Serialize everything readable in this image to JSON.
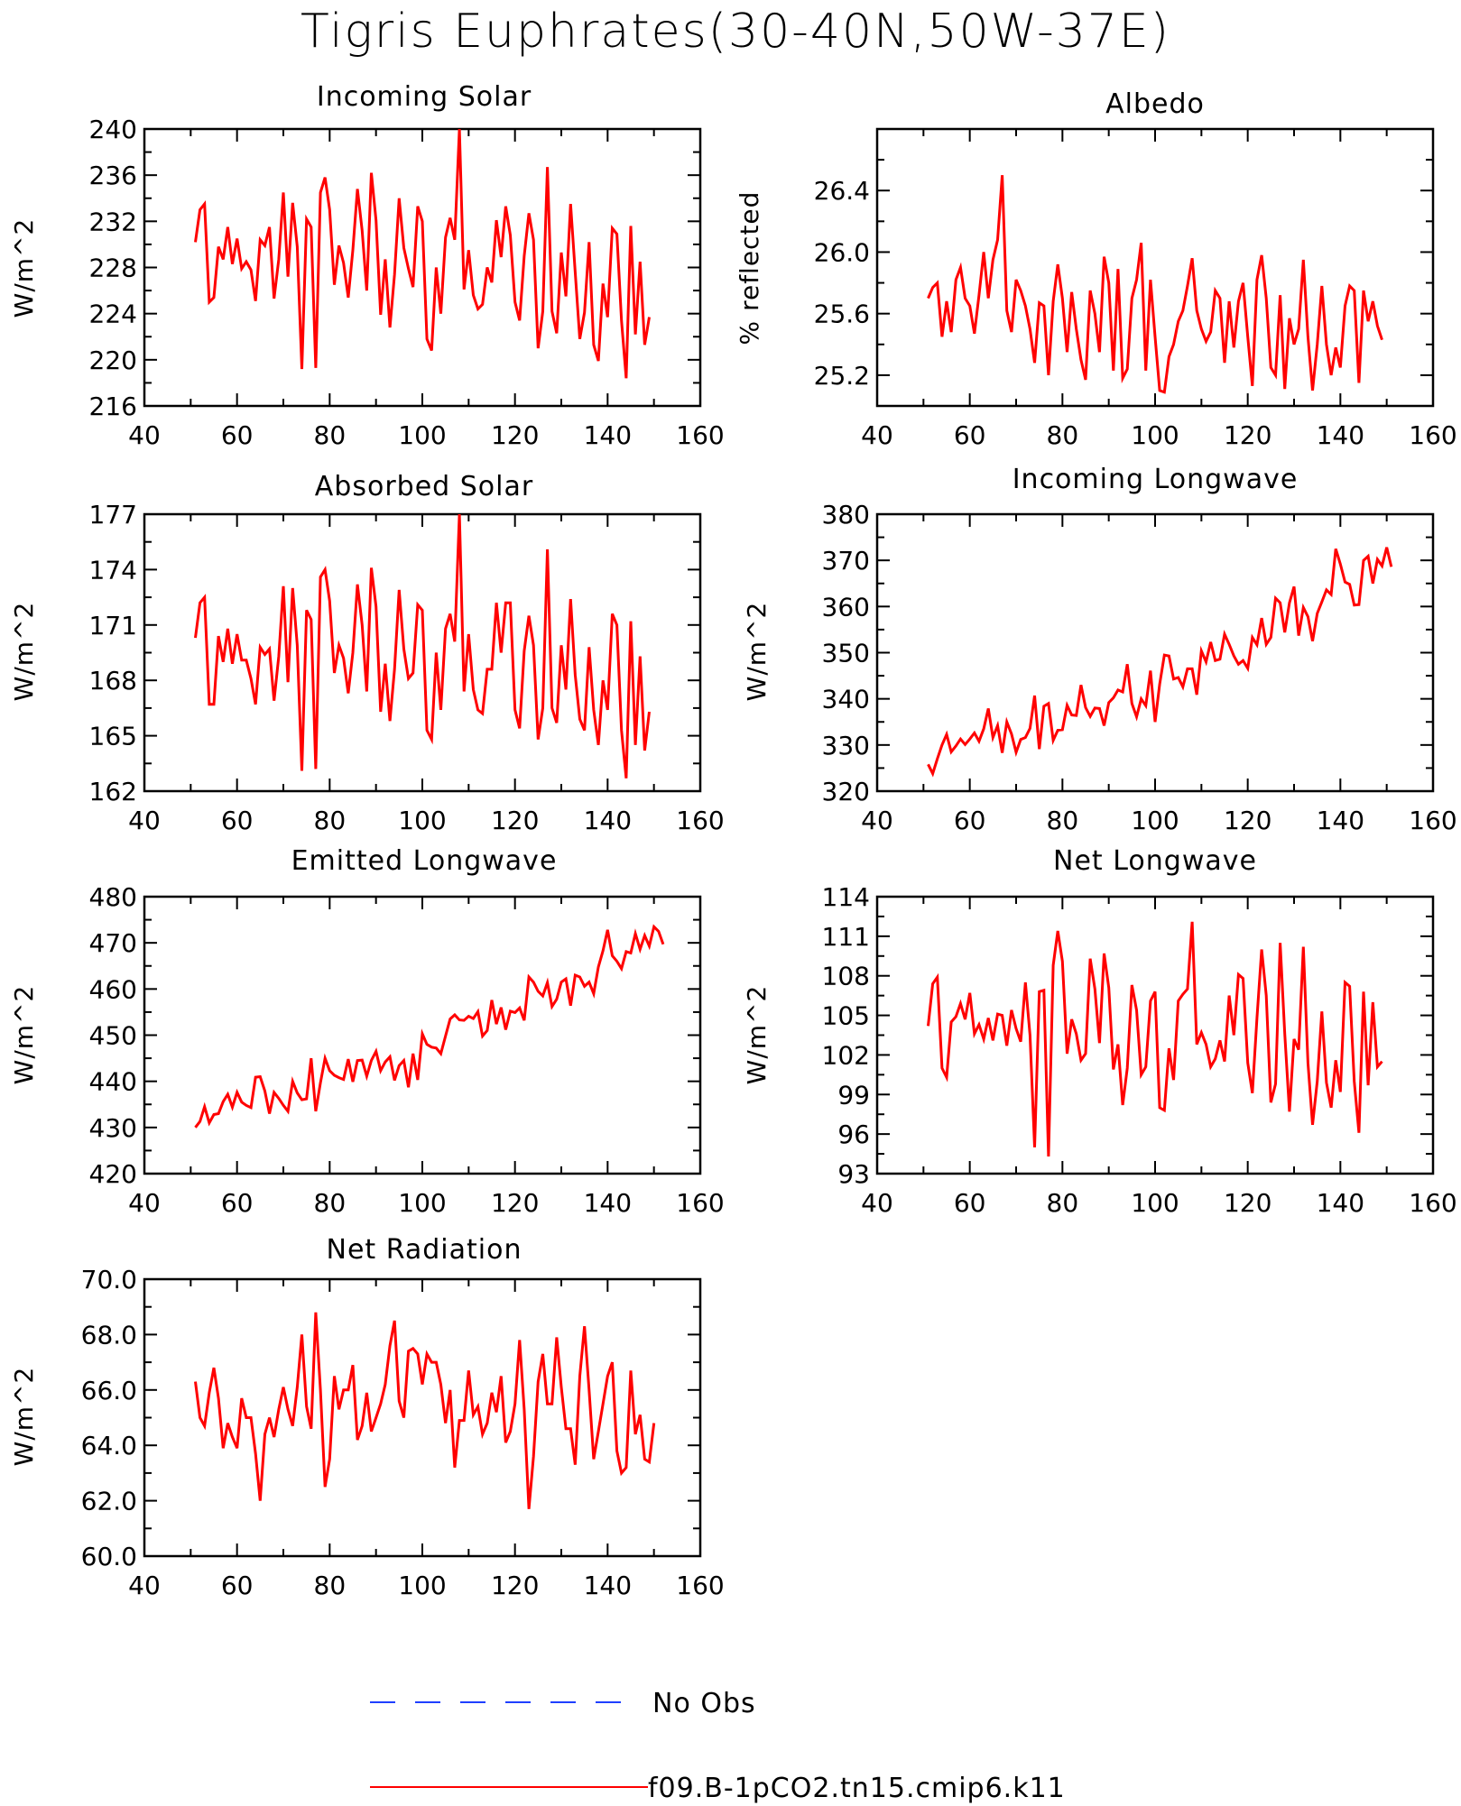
{
  "title": "Tigris Euphrates(30-40N,50W-37E)",
  "legend": [
    {
      "label": "No Obs",
      "color": "#1f3fff",
      "style": "dashed"
    },
    {
      "label": "f09.B-1pCO2.tn15.cmip6.k11",
      "color": "#ff0000",
      "style": "solid"
    }
  ],
  "chart_data": [
    {
      "type": "line",
      "title": "Incoming Solar",
      "ylabel": "W/m^2",
      "xlim": [
        40,
        160
      ],
      "ylim": [
        216,
        240
      ],
      "xticks": [
        40,
        60,
        80,
        100,
        120,
        140,
        160
      ],
      "yticks": [
        216,
        220,
        224,
        228,
        232,
        236,
        240
      ],
      "ytick_labels": [
        "216",
        "220",
        "224",
        "228",
        "232",
        "236",
        "240"
      ],
      "series": [
        {
          "color": "#ff0000",
          "x_start": 51,
          "values": [
            230.2,
            233.0,
            233.5,
            225.0,
            225.4,
            229.8,
            228.7,
            231.5,
            228.3,
            230.5,
            227.9,
            228.5,
            227.8,
            225.1,
            230.4,
            229.9,
            231.5,
            225.3,
            228.7,
            234.5,
            227.2,
            233.6,
            229.8,
            219.2,
            232.2,
            231.5,
            219.3,
            234.5,
            235.8,
            233.0,
            226.5,
            229.9,
            228.4,
            225.4,
            229.5,
            234.8,
            231.2,
            226.0,
            236.2,
            232.1,
            223.9,
            228.7,
            222.8,
            227.4,
            234.0,
            229.7,
            227.9,
            226.3,
            233.3,
            232.0,
            221.8,
            220.8,
            228.0,
            224.0,
            230.6,
            232.3,
            230.4,
            240.0,
            226.1,
            229.5,
            225.6,
            224.4,
            224.8,
            228.0,
            226.7,
            232.1,
            228.9,
            233.3,
            230.8,
            225.0,
            223.4,
            229.0,
            232.7,
            230.4,
            221.0,
            224.2,
            236.7,
            224.2,
            222.3,
            229.3,
            225.5,
            233.5,
            227.6,
            221.8,
            224.1,
            230.2,
            221.3,
            219.9,
            226.6,
            223.7,
            231.4,
            230.9,
            223.4,
            218.4,
            231.6,
            222.2,
            228.5,
            221.3,
            223.7
          ]
        }
      ]
    },
    {
      "type": "line",
      "title": "Albedo",
      "ylabel": "% reflected",
      "xlim": [
        40,
        160
      ],
      "ylim": [
        25.0,
        26.8
      ],
      "xticks": [
        40,
        60,
        80,
        100,
        120,
        140,
        160
      ],
      "yticks": [
        25.2,
        25.6,
        26.0,
        26.4
      ],
      "ytick_labels": [
        "25.2",
        "25.6",
        "26.0",
        "26.4"
      ],
      "series": [
        {
          "color": "#ff0000",
          "x_start": 51,
          "values": [
            25.7,
            25.77,
            25.8,
            25.45,
            25.68,
            25.48,
            25.82,
            25.9,
            25.7,
            25.65,
            25.47,
            25.72,
            26.0,
            25.7,
            25.95,
            26.08,
            26.5,
            25.62,
            25.48,
            25.82,
            25.75,
            25.65,
            25.5,
            25.28,
            25.67,
            25.65,
            25.2,
            25.68,
            25.92,
            25.7,
            25.35,
            25.74,
            25.5,
            25.3,
            25.17,
            25.75,
            25.6,
            25.35,
            25.97,
            25.8,
            25.23,
            25.89,
            25.18,
            25.24,
            25.7,
            25.82,
            26.06,
            25.23,
            25.82,
            25.45,
            25.1,
            25.09,
            25.32,
            25.4,
            25.55,
            25.62,
            25.78,
            25.96,
            25.62,
            25.5,
            25.42,
            25.48,
            25.75,
            25.7,
            25.28,
            25.68,
            25.38,
            25.68,
            25.8,
            25.45,
            25.13,
            25.82,
            25.98,
            25.7,
            25.25,
            25.2,
            25.72,
            25.11,
            25.57,
            25.4,
            25.5,
            25.95,
            25.45,
            25.1,
            25.4,
            25.78,
            25.4,
            25.2,
            25.38,
            25.25,
            25.65,
            25.78,
            25.75,
            25.15,
            25.75,
            25.55,
            25.68,
            25.52,
            25.43
          ]
        }
      ]
    },
    {
      "type": "line",
      "title": "Absorbed Solar",
      "ylabel": "W/m^2",
      "xlim": [
        40,
        160
      ],
      "ylim": [
        162,
        177
      ],
      "xticks": [
        40,
        60,
        80,
        100,
        120,
        140,
        160
      ],
      "yticks": [
        162,
        165,
        168,
        171,
        174,
        177
      ],
      "ytick_labels": [
        "162",
        "165",
        "168",
        "171",
        "174",
        "177"
      ],
      "series": [
        {
          "color": "#ff0000",
          "x_start": 51,
          "values": [
            170.3,
            172.2,
            172.5,
            166.7,
            166.7,
            170.4,
            169.0,
            170.8,
            168.9,
            170.5,
            169.1,
            169.1,
            168.1,
            166.7,
            169.8,
            169.4,
            169.7,
            166.9,
            169.3,
            173.1,
            167.9,
            173.0,
            169.9,
            163.1,
            171.8,
            171.3,
            163.2,
            173.6,
            174.0,
            172.3,
            168.4,
            169.9,
            169.2,
            167.3,
            169.5,
            173.2,
            171.0,
            167.4,
            174.1,
            172.0,
            166.3,
            168.9,
            165.8,
            168.6,
            172.9,
            169.7,
            168.1,
            168.4,
            172.1,
            171.8,
            165.3,
            164.8,
            169.5,
            166.4,
            170.8,
            171.6,
            170.1,
            177.0,
            167.4,
            170.5,
            167.5,
            166.4,
            166.2,
            168.6,
            168.6,
            172.2,
            169.5,
            172.2,
            172.2,
            166.4,
            165.4,
            169.6,
            171.5,
            169.9,
            164.8,
            166.5,
            175.1,
            166.5,
            165.7,
            169.9,
            167.5,
            172.4,
            168.3,
            165.9,
            165.3,
            169.8,
            166.4,
            164.5,
            168.0,
            166.4,
            171.6,
            171.0,
            165.3,
            162.7,
            171.2,
            164.5,
            169.3,
            164.2,
            166.3
          ]
        }
      ]
    },
    {
      "type": "line",
      "title": "Incoming Longwave",
      "ylabel": "W/m^2",
      "xlim": [
        40,
        160
      ],
      "ylim": [
        320,
        380
      ],
      "xticks": [
        40,
        60,
        80,
        100,
        120,
        140,
        160
      ],
      "yticks": [
        320,
        330,
        340,
        350,
        360,
        370,
        380
      ],
      "ytick_labels": [
        "320",
        "330",
        "340",
        "350",
        "360",
        "370",
        "380"
      ],
      "series": [
        {
          "color": "#ff0000",
          "x_start": 51,
          "values": [
            325.8,
            323.8,
            327.0,
            330.0,
            332.3,
            328.5,
            329.8,
            331.3,
            330.1,
            331.3,
            332.6,
            330.8,
            333.5,
            337.9,
            331.6,
            334.2,
            328.3,
            335.0,
            332.4,
            328.4,
            331.2,
            331.6,
            333.6,
            340.7,
            329.1,
            338.4,
            339.0,
            331.0,
            333.2,
            333.3,
            338.6,
            336.5,
            336.4,
            343.0,
            338.1,
            336.2,
            338.0,
            337.9,
            334.2,
            339.2,
            340.2,
            341.9,
            341.5,
            347.5,
            339.0,
            336.1,
            340.0,
            338.5,
            346.1,
            335.0,
            343.2,
            349.5,
            349.3,
            344.3,
            344.6,
            342.6,
            346.5,
            346.5,
            340.9,
            350.4,
            348.0,
            352.3,
            348.3,
            348.6,
            354.0,
            351.8,
            349.3,
            347.5,
            348.3,
            346.6,
            353.3,
            351.7,
            357.5,
            351.8,
            353.3,
            361.8,
            360.8,
            354.4,
            360.8,
            364.3,
            353.7,
            359.8,
            357.8,
            352.5,
            358.5,
            361.0,
            363.6,
            362.6,
            372.5,
            369.2,
            365.3,
            364.8,
            360.3,
            360.4,
            370.0,
            370.9,
            365.0,
            370.2,
            368.8,
            372.8,
            368.6
          ]
        }
      ]
    },
    {
      "type": "line",
      "title": "Emitted Longwave",
      "ylabel": "W/m^2",
      "xlim": [
        40,
        160
      ],
      "ylim": [
        420,
        480
      ],
      "xticks": [
        40,
        60,
        80,
        100,
        120,
        140,
        160
      ],
      "yticks": [
        420,
        430,
        440,
        450,
        460,
        470,
        480
      ],
      "ytick_labels": [
        "420",
        "430",
        "440",
        "450",
        "460",
        "470",
        "480"
      ],
      "series": [
        {
          "color": "#ff0000",
          "x_start": 51,
          "values": [
            430.0,
            431.3,
            434.5,
            431.0,
            432.8,
            433.0,
            435.6,
            437.2,
            434.4,
            437.6,
            435.5,
            434.8,
            434.3,
            440.9,
            441.0,
            437.9,
            433.0,
            437.6,
            436.3,
            434.8,
            433.5,
            440.0,
            437.5,
            436.0,
            436.2,
            445.0,
            433.5,
            439.7,
            445.0,
            442.3,
            441.3,
            440.8,
            440.4,
            444.8,
            439.9,
            444.5,
            444.6,
            441.1,
            444.5,
            446.5,
            442.3,
            444.2,
            445.3,
            440.2,
            443.4,
            444.5,
            438.7,
            446.0,
            440.3,
            450.3,
            448.0,
            447.4,
            447.2,
            446.0,
            449.8,
            453.5,
            454.4,
            453.3,
            453.2,
            454.1,
            453.6,
            455.1,
            449.8,
            451.0,
            457.6,
            452.4,
            456.0,
            451.2,
            455.2,
            454.9,
            455.9,
            453.2,
            462.6,
            461.5,
            459.5,
            458.5,
            461.4,
            456.2,
            457.8,
            461.5,
            462.2,
            456.4,
            463.0,
            462.6,
            460.6,
            461.5,
            459.0,
            464.8,
            468.3,
            472.8,
            467.2,
            466.0,
            464.4,
            468.1,
            467.8,
            472.0,
            468.6,
            471.6,
            469.3,
            473.5,
            472.5,
            469.7
          ]
        }
      ]
    },
    {
      "type": "line",
      "title": "Net Longwave",
      "ylabel": "W/m^2",
      "xlim": [
        40,
        160
      ],
      "ylim": [
        93,
        114
      ],
      "xticks": [
        40,
        60,
        80,
        100,
        120,
        140,
        160
      ],
      "yticks": [
        93,
        96,
        99,
        102,
        105,
        108,
        111,
        114
      ],
      "ytick_labels": [
        "93",
        "96",
        "99",
        "102",
        "105",
        "108",
        "111",
        "114"
      ],
      "series": [
        {
          "color": "#ff0000",
          "x_start": 51,
          "values": [
            104.2,
            107.4,
            107.9,
            101.0,
            100.3,
            104.5,
            104.9,
            105.9,
            104.7,
            106.7,
            103.6,
            104.3,
            103.2,
            104.8,
            103.1,
            105.1,
            105.0,
            102.7,
            105.4,
            104.0,
            103.0,
            107.5,
            103.5,
            95.0,
            106.8,
            106.9,
            94.3,
            108.8,
            111.4,
            109.1,
            102.1,
            104.7,
            103.6,
            101.6,
            102.1,
            109.3,
            107.0,
            102.9,
            109.7,
            107.1,
            100.9,
            102.8,
            98.2,
            101.0,
            107.3,
            105.4,
            100.5,
            101.1,
            106.1,
            106.8,
            98.0,
            97.8,
            102.5,
            100.1,
            106.1,
            106.6,
            107.0,
            112.1,
            102.8,
            103.7,
            102.8,
            101.1,
            101.7,
            103.1,
            101.5,
            106.5,
            103.5,
            108.1,
            107.8,
            101.4,
            99.1,
            104.8,
            110.0,
            106.5,
            98.4,
            99.8,
            110.5,
            103.6,
            97.7,
            103.2,
            102.4,
            110.2,
            101.4,
            96.7,
            100.0,
            105.3,
            99.9,
            98.0,
            101.6,
            99.2,
            107.5,
            107.2,
            100.0,
            96.1,
            106.8,
            99.7,
            106.0,
            101.1,
            101.5
          ]
        }
      ]
    },
    {
      "type": "line",
      "title": "Net Radiation",
      "ylabel": "W/m^2",
      "xlim": [
        40,
        160
      ],
      "ylim": [
        60,
        70
      ],
      "xticks": [
        40,
        60,
        80,
        100,
        120,
        140,
        160
      ],
      "yticks": [
        60,
        62,
        64,
        66,
        68,
        70
      ],
      "ytick_labels": [
        "60.0",
        "62.0",
        "64.0",
        "66.0",
        "68.0",
        "70.0"
      ],
      "series": [
        {
          "color": "#ff0000",
          "x_start": 51,
          "values": [
            66.3,
            65.0,
            64.7,
            65.9,
            66.8,
            65.7,
            63.9,
            64.8,
            64.3,
            63.9,
            65.7,
            65.0,
            65.0,
            63.7,
            62.0,
            64.4,
            65.0,
            64.3,
            65.3,
            66.1,
            65.3,
            64.7,
            66.1,
            68.0,
            65.4,
            64.6,
            68.8,
            66.0,
            62.5,
            63.5,
            66.5,
            65.3,
            66.0,
            66.0,
            66.9,
            64.2,
            64.7,
            65.9,
            64.5,
            65.0,
            65.5,
            66.2,
            67.6,
            68.5,
            65.6,
            65.0,
            67.4,
            67.5,
            67.3,
            66.2,
            67.3,
            67.0,
            67.0,
            66.2,
            64.8,
            66.0,
            63.2,
            64.9,
            64.9,
            66.7,
            65.1,
            65.4,
            64.4,
            64.8,
            65.9,
            65.2,
            66.5,
            64.1,
            64.5,
            65.5,
            67.8,
            65.3,
            61.7,
            63.6,
            66.3,
            67.3,
            65.5,
            65.5,
            67.9,
            66.1,
            64.6,
            64.6,
            63.3,
            66.5,
            68.3,
            66.0,
            63.5,
            64.5,
            65.5,
            66.5,
            67.0,
            63.8,
            63.0,
            63.2,
            66.7,
            64.4,
            65.1,
            63.5,
            63.4,
            64.8
          ]
        }
      ]
    }
  ]
}
